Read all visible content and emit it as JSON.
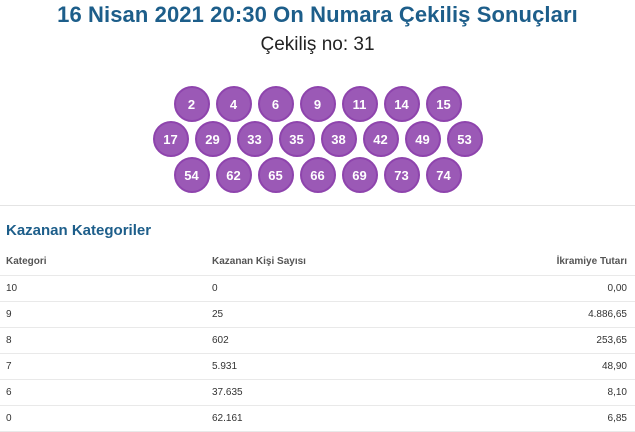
{
  "header": {
    "title": "16 Nisan 2021 20:30 On Numara Çekiliş Sonuçları",
    "draw_no": "Çekiliş no: 31"
  },
  "balls": {
    "row1": [
      "2",
      "4",
      "6",
      "9",
      "11",
      "14",
      "15"
    ],
    "row2": [
      "17",
      "29",
      "33",
      "35",
      "38",
      "42",
      "49",
      "53"
    ],
    "row3": [
      "54",
      "62",
      "65",
      "66",
      "69",
      "73",
      "74"
    ],
    "color": "#9b59b6"
  },
  "winners": {
    "title": "Kazanan Kategoriler",
    "headers": [
      "Kategori",
      "Kazanan Kişi Sayısı",
      "İkramiye Tutarı"
    ],
    "rows": [
      [
        "10",
        "0",
        "0,00"
      ],
      [
        "9",
        "25",
        "4.886,65"
      ],
      [
        "8",
        "602",
        "253,65"
      ],
      [
        "7",
        "5.931",
        "48,90"
      ],
      [
        "6",
        "37.635",
        "8,10"
      ],
      [
        "0",
        "62.161",
        "6,85"
      ]
    ]
  }
}
